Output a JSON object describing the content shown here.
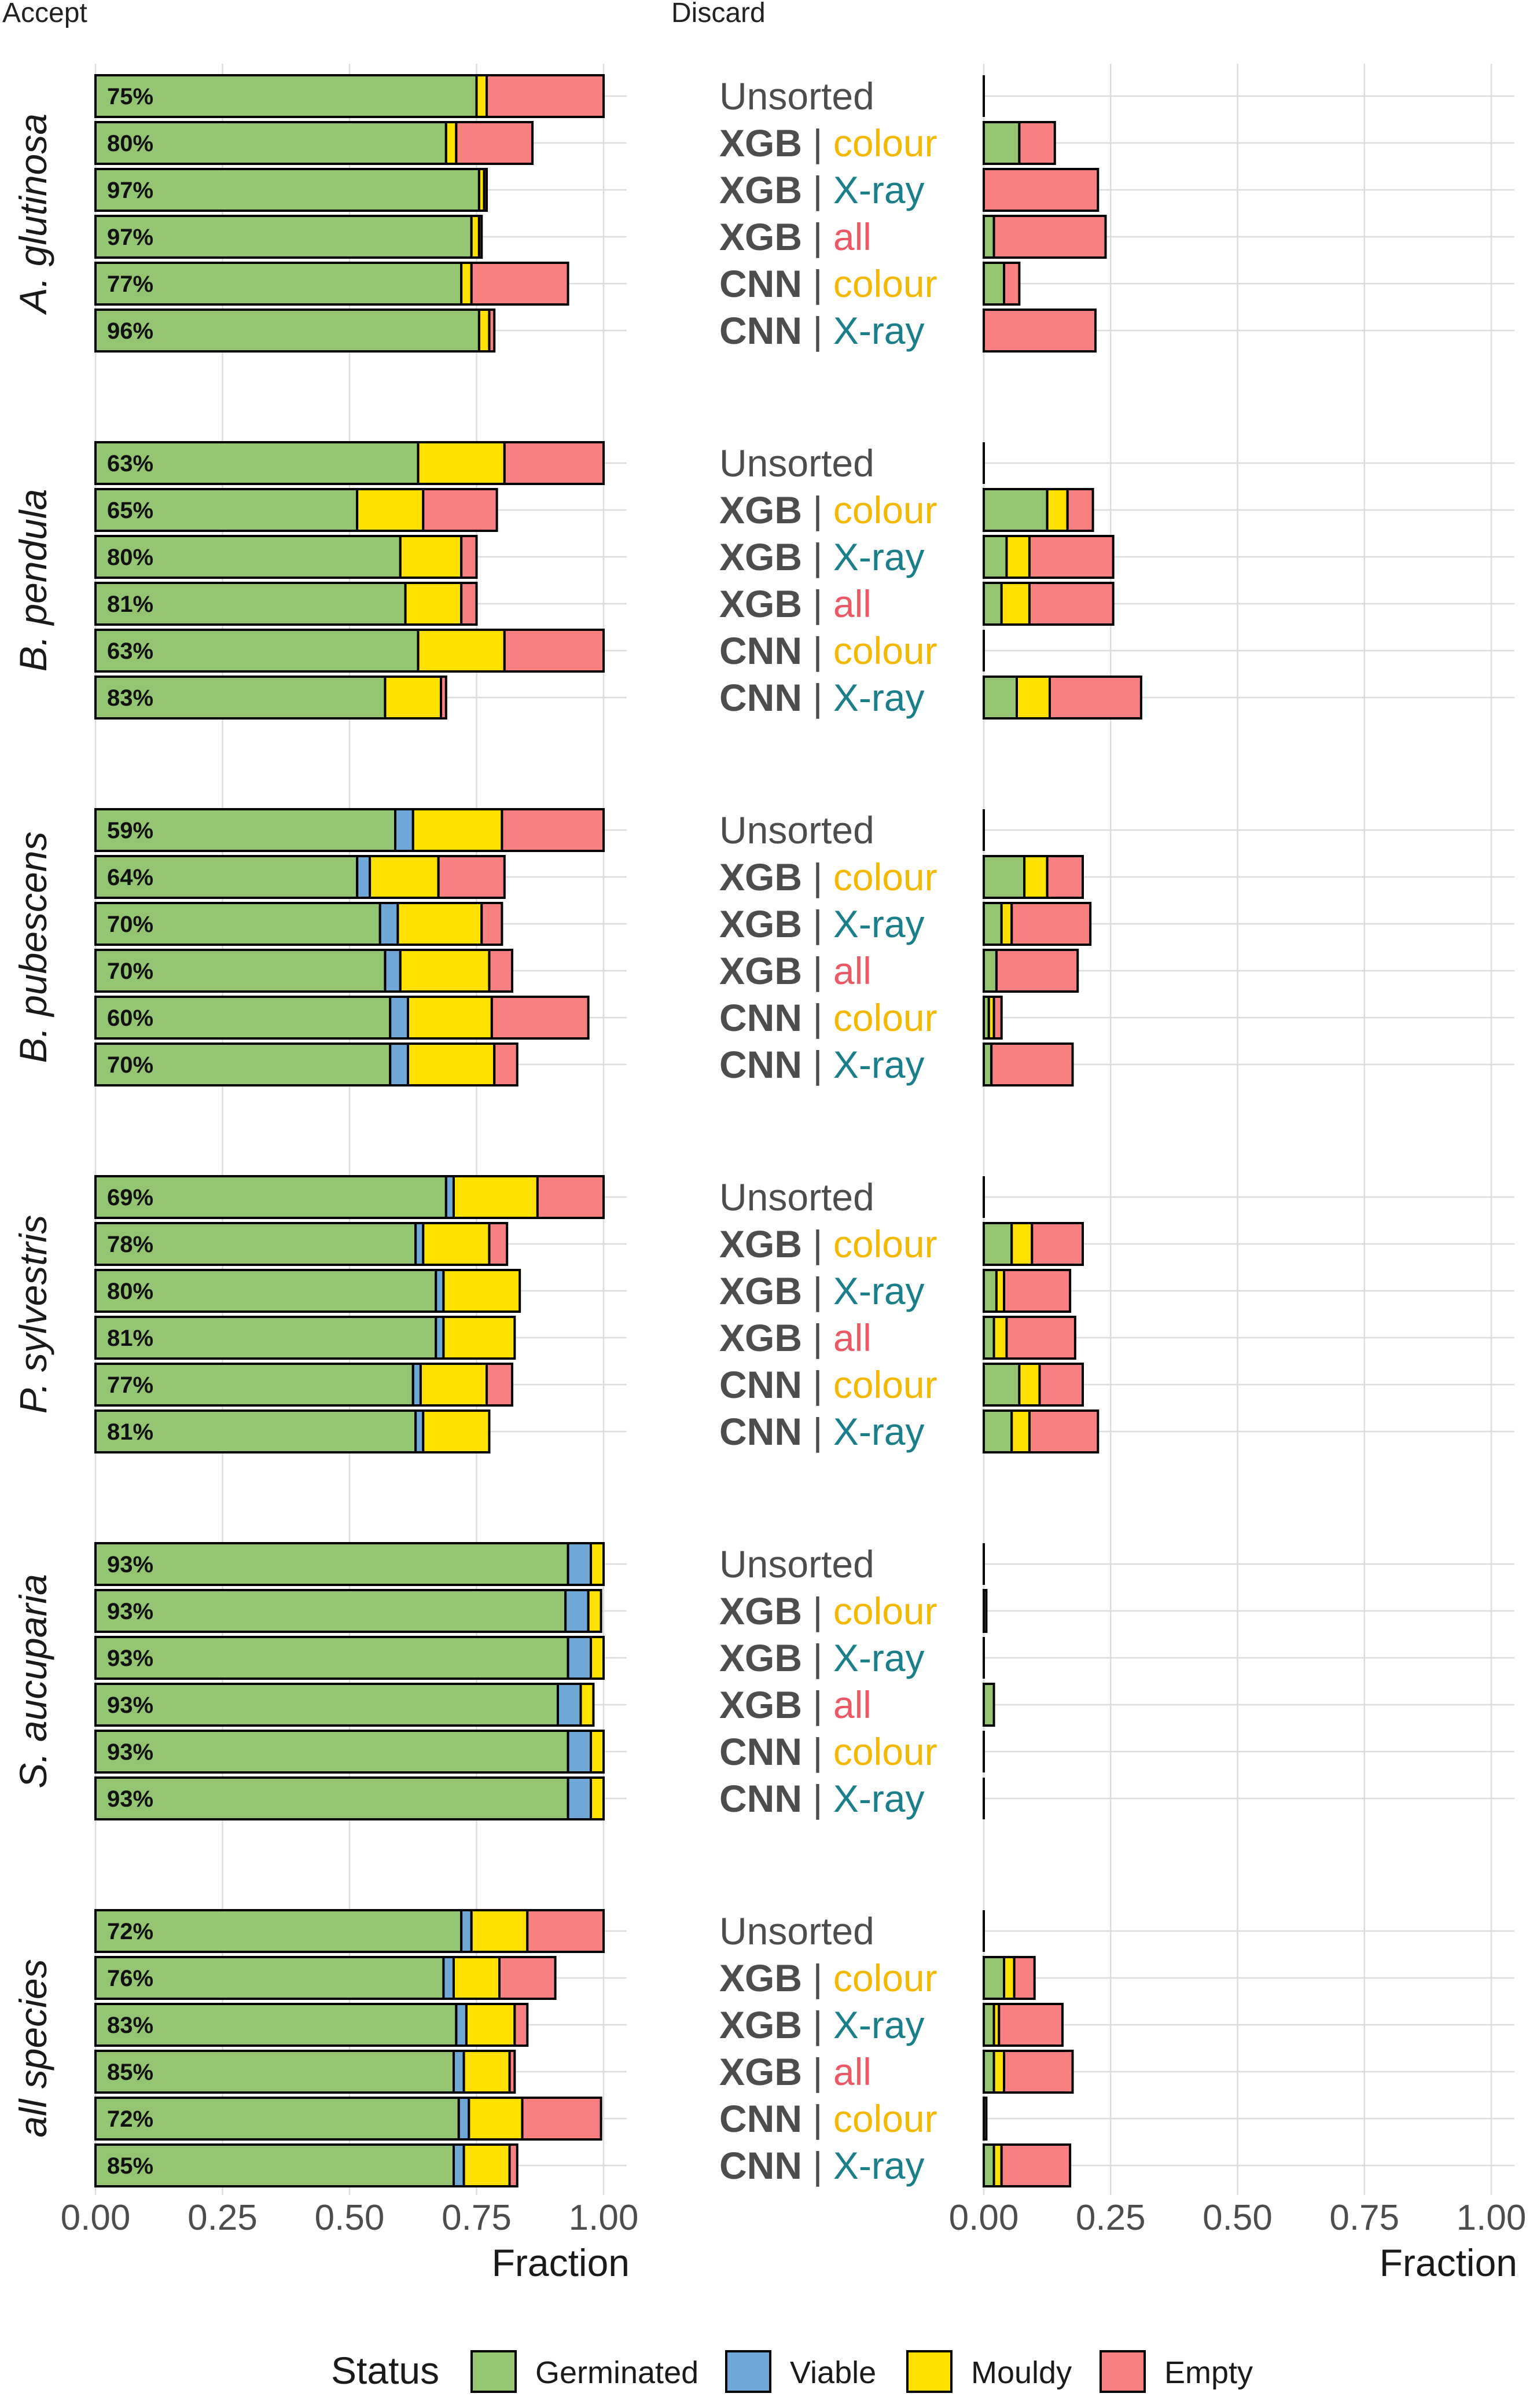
{
  "chart_data": {
    "type": "bar",
    "orientation": "horizontal",
    "stacked": true,
    "panels": [
      {
        "title": "Accept",
        "xlabel": "Fraction",
        "xlim": [
          0,
          1
        ],
        "xticks": [
          "0.00",
          "0.25",
          "0.50",
          "0.75",
          "1.00"
        ],
        "grid": true
      },
      {
        "title": "Discard",
        "xlabel": "Fraction",
        "xlim": [
          0,
          1
        ],
        "xticks": [
          "0.00",
          "0.25",
          "0.50",
          "0.75",
          "1.00"
        ],
        "grid": true
      }
    ],
    "legend": {
      "title": "Status",
      "position": "bottom",
      "items": [
        {
          "name": "Germinated",
          "color": "#93c572"
        },
        {
          "name": "Viable",
          "color": "#6fa8d6"
        },
        {
          "name": "Mouldy",
          "color": "#ffe100"
        },
        {
          "name": "Empty",
          "color": "#f98080"
        }
      ]
    },
    "method_colors": {
      "colour": "#f5b800",
      "X-ray": "#1a7f8a",
      "all": "#ec5865"
    },
    "species": [
      {
        "name": "A. glutinosa",
        "methods": [
          {
            "model": "",
            "feature": "Unsorted",
            "label": "75%",
            "accept": [
              0.75,
              0,
              0.02,
              0.23
            ],
            "discard": [
              0,
              0,
              0,
              0
            ]
          },
          {
            "model": "XGB",
            "feature": "colour",
            "label": "80%",
            "accept": [
              0.69,
              0,
              0.02,
              0.15
            ],
            "discard": [
              0.07,
              0,
              0,
              0.07
            ]
          },
          {
            "model": "XGB",
            "feature": "X-ray",
            "label": "97%",
            "accept": [
              0.755,
              0,
              0.01,
              0.005
            ],
            "discard": [
              0,
              0,
              0,
              0.225
            ]
          },
          {
            "model": "XGB",
            "feature": "all",
            "label": "97%",
            "accept": [
              0.74,
              0,
              0.015,
              0.005
            ],
            "discard": [
              0.02,
              0,
              0,
              0.22
            ]
          },
          {
            "model": "CNN",
            "feature": "colour",
            "label": "77%",
            "accept": [
              0.72,
              0,
              0.02,
              0.19
            ],
            "discard": [
              0.04,
              0,
              0,
              0.03
            ]
          },
          {
            "model": "CNN",
            "feature": "X-ray",
            "label": "96%",
            "accept": [
              0.755,
              0,
              0.02,
              0.01
            ],
            "discard": [
              0,
              0,
              0,
              0.22
            ]
          }
        ]
      },
      {
        "name": "B. pendula",
        "methods": [
          {
            "model": "",
            "feature": "Unsorted",
            "label": "63%",
            "accept": [
              0.635,
              0,
              0.17,
              0.195
            ],
            "discard": [
              0,
              0,
              0,
              0
            ]
          },
          {
            "model": "XGB",
            "feature": "colour",
            "label": "65%",
            "accept": [
              0.515,
              0,
              0.13,
              0.145
            ],
            "discard": [
              0.125,
              0,
              0.04,
              0.05
            ]
          },
          {
            "model": "XGB",
            "feature": "X-ray",
            "label": "80%",
            "accept": [
              0.6,
              0,
              0.12,
              0.03
            ],
            "discard": [
              0.045,
              0,
              0.045,
              0.165
            ]
          },
          {
            "model": "XGB",
            "feature": "all",
            "label": "81%",
            "accept": [
              0.61,
              0,
              0.11,
              0.03
            ],
            "discard": [
              0.035,
              0,
              0.055,
              0.165
            ]
          },
          {
            "model": "CNN",
            "feature": "colour",
            "label": "63%",
            "accept": [
              0.635,
              0,
              0.17,
              0.195
            ],
            "discard": [
              0,
              0,
              0,
              0
            ]
          },
          {
            "model": "CNN",
            "feature": "X-ray",
            "label": "83%",
            "accept": [
              0.57,
              0,
              0.11,
              0.01
            ],
            "discard": [
              0.065,
              0,
              0.065,
              0.18
            ]
          }
        ]
      },
      {
        "name": "B. pubescens",
        "methods": [
          {
            "model": "",
            "feature": "Unsorted",
            "label": "59%",
            "accept": [
              0.59,
              0.035,
              0.175,
              0.2
            ],
            "discard": [
              0,
              0,
              0,
              0
            ]
          },
          {
            "model": "XGB",
            "feature": "colour",
            "label": "64%",
            "accept": [
              0.515,
              0.025,
              0.135,
              0.13
            ],
            "discard": [
              0.08,
              0,
              0.045,
              0.07
            ]
          },
          {
            "model": "XGB",
            "feature": "X-ray",
            "label": "70%",
            "accept": [
              0.56,
              0.035,
              0.165,
              0.04
            ],
            "discard": [
              0.035,
              0,
              0.02,
              0.155
            ]
          },
          {
            "model": "XGB",
            "feature": "all",
            "label": "70%",
            "accept": [
              0.57,
              0.03,
              0.175,
              0.045
            ],
            "discard": [
              0.025,
              0,
              0,
              0.16
            ]
          },
          {
            "model": "CNN",
            "feature": "colour",
            "label": "60%",
            "accept": [
              0.58,
              0.035,
              0.165,
              0.19
            ],
            "discard": [
              0.01,
              0,
              0.01,
              0.015
            ]
          },
          {
            "model": "CNN",
            "feature": "X-ray",
            "label": "70%",
            "accept": [
              0.58,
              0.035,
              0.17,
              0.045
            ],
            "discard": [
              0.015,
              0,
              0,
              0.16
            ]
          }
        ]
      },
      {
        "name": "P. sylvestris",
        "methods": [
          {
            "model": "",
            "feature": "Unsorted",
            "label": "69%",
            "accept": [
              0.69,
              0.015,
              0.165,
              0.13
            ],
            "discard": [
              0,
              0,
              0,
              0
            ]
          },
          {
            "model": "XGB",
            "feature": "colour",
            "label": "78%",
            "accept": [
              0.63,
              0.015,
              0.13,
              0.035
            ],
            "discard": [
              0.055,
              0,
              0.04,
              0.1
            ]
          },
          {
            "model": "XGB",
            "feature": "X-ray",
            "label": "80%",
            "accept": [
              0.67,
              0.015,
              0.15,
              0
            ],
            "discard": [
              0.025,
              0,
              0.015,
              0.13
            ]
          },
          {
            "model": "XGB",
            "feature": "all",
            "label": "81%",
            "accept": [
              0.67,
              0.015,
              0.14,
              0
            ],
            "discard": [
              0.02,
              0,
              0.025,
              0.135
            ]
          },
          {
            "model": "CNN",
            "feature": "colour",
            "label": "77%",
            "accept": [
              0.625,
              0.015,
              0.13,
              0.05
            ],
            "discard": [
              0.07,
              0,
              0.04,
              0.085
            ]
          },
          {
            "model": "CNN",
            "feature": "X-ray",
            "label": "81%",
            "accept": [
              0.63,
              0.015,
              0.13,
              0
            ],
            "discard": [
              0.055,
              0,
              0.035,
              0.135
            ]
          }
        ]
      },
      {
        "name": "S. aucuparia",
        "methods": [
          {
            "model": "",
            "feature": "Unsorted",
            "label": "93%",
            "accept": [
              0.93,
              0.045,
              0.025,
              0
            ],
            "discard": [
              0,
              0,
              0,
              0
            ]
          },
          {
            "model": "XGB",
            "feature": "colour",
            "label": "93%",
            "accept": [
              0.925,
              0.045,
              0.025,
              0
            ],
            "discard": [
              0.005,
              0,
              0,
              0
            ]
          },
          {
            "model": "XGB",
            "feature": "X-ray",
            "label": "93%",
            "accept": [
              0.93,
              0.045,
              0.025,
              0
            ],
            "discard": [
              0,
              0,
              0,
              0
            ]
          },
          {
            "model": "XGB",
            "feature": "all",
            "label": "93%",
            "accept": [
              0.91,
              0.045,
              0.025,
              0
            ],
            "discard": [
              0.02,
              0,
              0,
              0
            ]
          },
          {
            "model": "CNN",
            "feature": "colour",
            "label": "93%",
            "accept": [
              0.93,
              0.045,
              0.025,
              0
            ],
            "discard": [
              0,
              0,
              0,
              0
            ]
          },
          {
            "model": "CNN",
            "feature": "X-ray",
            "label": "93%",
            "accept": [
              0.93,
              0.045,
              0.025,
              0
            ],
            "discard": [
              0,
              0,
              0,
              0
            ]
          }
        ]
      },
      {
        "name": "all species",
        "methods": [
          {
            "model": "",
            "feature": "Unsorted",
            "label": "72%",
            "accept": [
              0.72,
              0.02,
              0.11,
              0.15
            ],
            "discard": [
              0,
              0,
              0,
              0
            ]
          },
          {
            "model": "XGB",
            "feature": "colour",
            "label": "76%",
            "accept": [
              0.685,
              0.02,
              0.09,
              0.11
            ],
            "discard": [
              0.04,
              0,
              0.02,
              0.04
            ]
          },
          {
            "model": "XGB",
            "feature": "X-ray",
            "label": "83%",
            "accept": [
              0.71,
              0.02,
              0.095,
              0.025
            ],
            "discard": [
              0.02,
              0,
              0.01,
              0.125
            ]
          },
          {
            "model": "XGB",
            "feature": "all",
            "label": "85%",
            "accept": [
              0.705,
              0.02,
              0.09,
              0.01
            ],
            "discard": [
              0.02,
              0,
              0.02,
              0.135
            ]
          },
          {
            "model": "CNN",
            "feature": "colour",
            "label": "72%",
            "accept": [
              0.715,
              0.02,
              0.105,
              0.155
            ],
            "discard": [
              0.005,
              0,
              0,
              0
            ]
          },
          {
            "model": "CNN",
            "feature": "X-ray",
            "label": "85%",
            "accept": [
              0.705,
              0.02,
              0.09,
              0.015
            ],
            "discard": [
              0.02,
              0,
              0.015,
              0.135
            ]
          }
        ]
      }
    ]
  }
}
